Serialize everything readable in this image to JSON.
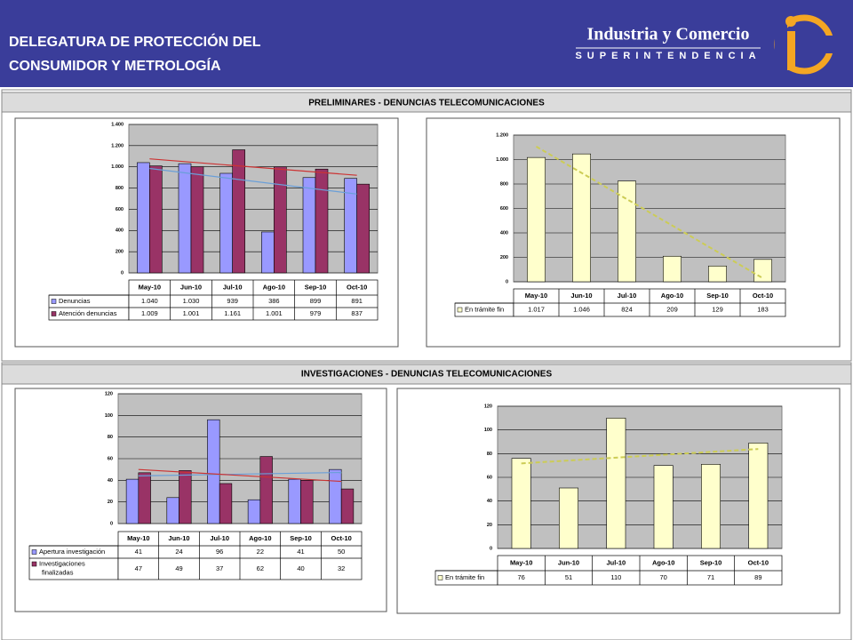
{
  "header": {
    "title_lines": [
      "DELEGATURA DE PROTECCIÓN DEL",
      "CONSUMIDOR Y METROLOGÍA"
    ],
    "brand": "Industria y Comercio",
    "brand_sub": "SUPERINTENDENCIA"
  },
  "sections": [
    "PRELIMINARES - DENUNCIAS TELECOMUNICACIONES",
    "INVESTIGACIONES  - DENUNCIAS TELECOMUNICACIONES"
  ],
  "chart_data": [
    {
      "type": "bar",
      "categories": [
        "May-10",
        "Jun-10",
        "Jul-10",
        "Ago-10",
        "Sep-10",
        "Oct-10"
      ],
      "series": [
        {
          "name": "Denuncias",
          "color": "#9999ff",
          "trend_color": "#6a9fd8",
          "values": [
            1040,
            1030,
            939,
            386,
            899,
            891
          ],
          "value_labels": [
            "1.040",
            "1.030",
            "939",
            "386",
            "899",
            "891"
          ]
        },
        {
          "name": "Atención denuncias",
          "color": "#993366",
          "trend_color": "#cc3333",
          "values": [
            1009,
            1001,
            1161,
            1001,
            979,
            837
          ],
          "value_labels": [
            "1.009",
            "1.001",
            "1.161",
            "1.001",
            "979",
            "837"
          ]
        }
      ],
      "ylim": [
        0,
        1400
      ],
      "yticks": [
        0,
        200,
        400,
        600,
        800,
        {
          "value": 1000,
          "label": "1.000"
        },
        {
          "value": 1200,
          "label": "1.200"
        },
        {
          "value": 1400,
          "label": "1.400"
        }
      ],
      "grid": true,
      "trendline": true
    },
    {
      "type": "bar",
      "categories": [
        "May-10",
        "Jun-10",
        "Jul-10",
        "Ago-10",
        "Sep-10",
        "Oct-10"
      ],
      "series": [
        {
          "name": "En trámite fin",
          "color": "#ffffcc",
          "trend_color": "#cccc55",
          "values": [
            1017,
            1046,
            824,
            209,
            129,
            183
          ],
          "value_labels": [
            "1.017",
            "1.046",
            "824",
            "209",
            "129",
            "183"
          ]
        }
      ],
      "ylim": [
        0,
        1200
      ],
      "yticks": [
        0,
        200,
        400,
        600,
        800,
        {
          "value": 1000,
          "label": "1.000"
        },
        {
          "value": 1200,
          "label": "1.200"
        }
      ],
      "grid": true,
      "trendline": true
    },
    {
      "type": "bar",
      "categories": [
        "May-10",
        "Jun-10",
        "Jul-10",
        "Ago-10",
        "Sep-10",
        "Oct-10"
      ],
      "series": [
        {
          "name": "Apertura investigación",
          "color": "#9999ff",
          "trend_color": "#6a9fd8",
          "values": [
            41,
            24,
            96,
            22,
            41,
            50
          ]
        },
        {
          "name": "Investigaciones finalizadas",
          "color": "#993366",
          "trend_color": "#cc3333",
          "values": [
            47,
            49,
            37,
            62,
            40,
            32
          ]
        }
      ],
      "ylim": [
        0,
        120
      ],
      "yticks": [
        0,
        20,
        40,
        60,
        80,
        100,
        120
      ],
      "grid": true,
      "trendline": true
    },
    {
      "type": "bar",
      "categories": [
        "May-10",
        "Jun-10",
        "Jul-10",
        "Ago-10",
        "Sep-10",
        "Oct-10"
      ],
      "series": [
        {
          "name": "En trámite fin",
          "color": "#ffffcc",
          "trend_color": "#cccc55",
          "values": [
            76,
            51,
            110,
            70,
            71,
            89
          ]
        }
      ],
      "ylim": [
        0,
        120
      ],
      "yticks": [
        0,
        20,
        40,
        60,
        80,
        100,
        120
      ],
      "grid": true,
      "trendline": true
    }
  ]
}
